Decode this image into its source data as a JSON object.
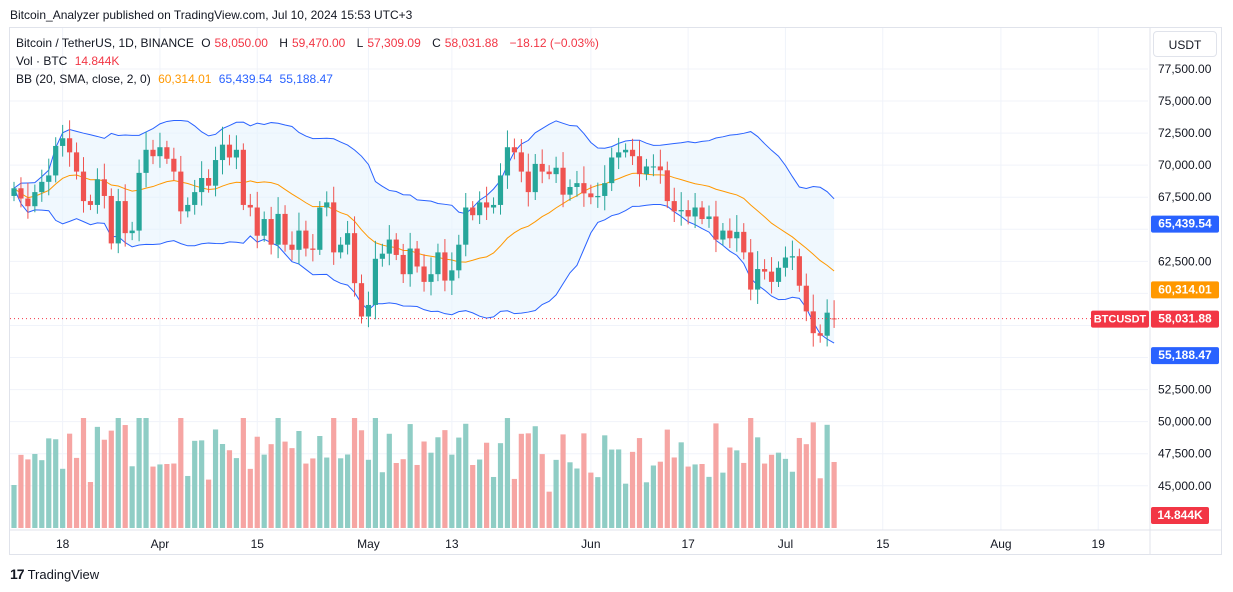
{
  "header": {
    "publisher_line": "Bitcoin_Analyzer published on TradingView.com, Jul 10, 2024 15:53 UTC+3"
  },
  "legend": {
    "symbol": "Bitcoin / TetherUS, 1D, BINANCE",
    "o_label": "O",
    "o": "58,050.00",
    "h_label": "H",
    "h": "59,470.00",
    "l_label": "L",
    "l": "57,309.09",
    "c_label": "C",
    "c": "58,031.88",
    "change": "−18.12 (−0.03%)",
    "vol_label": "Vol · BTC",
    "vol": "14.844K",
    "bb_label": "BB (20, SMA, close, 2, 0)",
    "bb_basis": "60,314.01",
    "bb_upper": "65,439.54",
    "bb_lower": "55,188.47"
  },
  "currency": "USDT",
  "footer": {
    "logo": "17",
    "brand": "TradingView"
  },
  "colors": {
    "up": "#26a69a",
    "down": "#ef5350",
    "vol_up": "#8fcdc5",
    "vol_down": "#f6a5a3",
    "basis": "#ff9800",
    "band": "#2962ff",
    "fill": "#e3f2fd"
  },
  "chart_data": {
    "type": "candlestick",
    "y_ticks": [
      "77,500.00",
      "75,000.00",
      "72,500.00",
      "70,000.00",
      "67,500.00",
      "62,500.00",
      "52,500.00",
      "50,000.00",
      "47,500.00",
      "45,000.00"
    ],
    "y_tick_values": [
      77500,
      75000,
      72500,
      70000,
      67500,
      62500,
      52500,
      50000,
      47500,
      45000
    ],
    "x_ticks": [
      {
        "label": "18",
        "day": 7
      },
      {
        "label": "Apr",
        "day": 21
      },
      {
        "label": "15",
        "day": 35
      },
      {
        "label": "May",
        "day": 51
      },
      {
        "label": "13",
        "day": 63
      },
      {
        "label": "Jun",
        "day": 83
      },
      {
        "label": "17",
        "day": 97
      },
      {
        "label": "Jul",
        "day": 111
      },
      {
        "label": "15",
        "day": 125
      },
      {
        "label": "Aug",
        "day": 142
      },
      {
        "label": "19",
        "day": 156
      }
    ],
    "axis_badges": [
      {
        "label": "65,439.54",
        "value": 65439.54,
        "color": "#2962ff"
      },
      {
        "label": "60,314.01",
        "value": 60314.01,
        "color": "#ff9800"
      },
      {
        "label": "58,031.88",
        "value": 58031.88,
        "color": "#f23645"
      },
      {
        "label": "55,188.47",
        "value": 55188.47,
        "color": "#2962ff"
      }
    ],
    "price_tag": "BTCUSDT",
    "volume_badge": "14.844K",
    "closes": [
      68200,
      67400,
      66800,
      67900,
      68700,
      69200,
      71500,
      72100,
      71000,
      69500,
      67200,
      66900,
      68900,
      67600,
      63900,
      67200,
      64700,
      64900,
      69400,
      71200,
      70700,
      71400,
      70500,
      69500,
      66400,
      66900,
      67900,
      69000,
      68400,
      70400,
      71600,
      70600,
      71200,
      66900,
      66700,
      64500,
      65800,
      63800,
      66200,
      63800,
      63400,
      64900,
      63500,
      63400,
      66700,
      67100,
      63200,
      63800,
      64700,
      60800,
      58200,
      59100,
      62700,
      63100,
      64200,
      63000,
      61500,
      63500,
      62100,
      60900,
      61500,
      63200,
      61000,
      61800,
      63800,
      66700,
      66100,
      67100,
      66700,
      66900,
      69200,
      71400,
      71000,
      69500,
      67900,
      70100,
      69500,
      69300,
      69800,
      67700,
      68300,
      68600,
      67800,
      67500,
      67600,
      68600,
      70600,
      71000,
      71200,
      70700,
      69300,
      69900,
      69900,
      69600,
      67200,
      66400,
      66500,
      66000,
      66700,
      65800,
      66000,
      64200,
      64900,
      64300,
      64800,
      63200,
      60300,
      61900,
      61700,
      60900,
      62000,
      62800,
      62900,
      60600,
      58600,
      56900,
      56700,
      58500,
      58000
    ],
    "ohlc_today": {
      "o": 58050,
      "h": 59470,
      "l": 57309.09,
      "c": 58031.88
    },
    "volume_scale": "relative"
  }
}
